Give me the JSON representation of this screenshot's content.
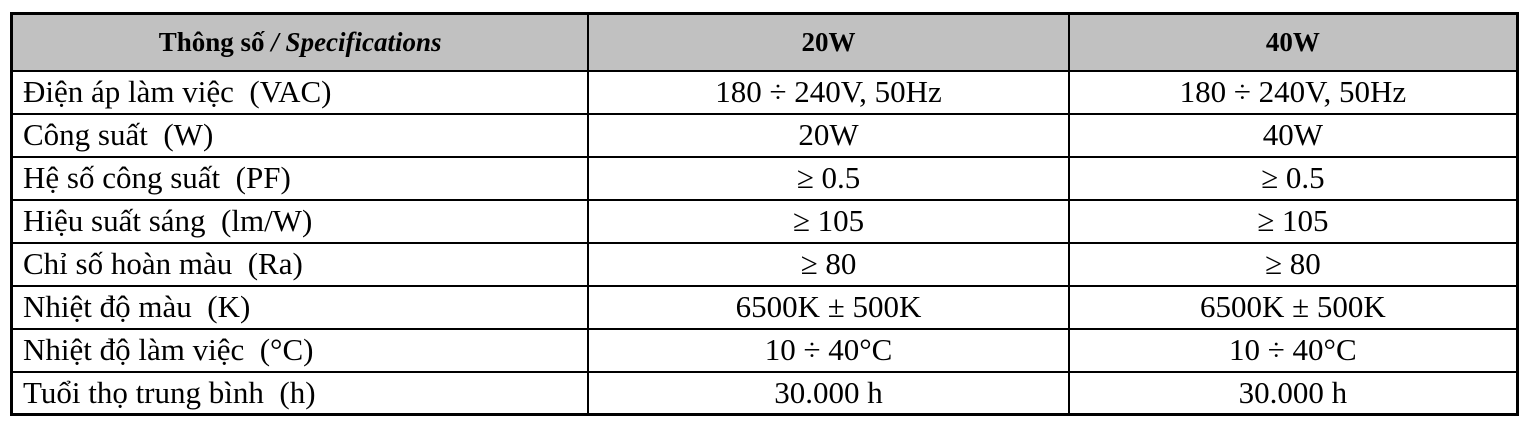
{
  "table": {
    "header": {
      "col1_prefix": "Thông số ",
      "col1_italic": "/ Specifications",
      "col2": "20W",
      "col3": "40W"
    },
    "rows": [
      {
        "label": "Điện áp làm việc  (VAC)",
        "v20": "180 ÷ 240V, 50Hz",
        "v40": "180 ÷ 240V, 50Hz"
      },
      {
        "label": "Công suất  (W)",
        "v20": "20W",
        "v40": "40W"
      },
      {
        "label": "Hệ số công suất  (PF)",
        "v20": "≥ 0.5",
        "v40": "≥ 0.5"
      },
      {
        "label": "Hiệu suất sáng  (lm/W)",
        "v20": "≥ 105",
        "v40": "≥ 105"
      },
      {
        "label": "Chỉ số hoàn màu  (Ra)",
        "v20": "≥ 80",
        "v40": "≥ 80"
      },
      {
        "label": "Nhiệt độ màu  (K)",
        "v20": "6500K ± 500K",
        "v40": "6500K ± 500K"
      },
      {
        "label": "Nhiệt độ làm việc  (°C)",
        "v20": "10 ÷ 40°C",
        "v40": "10 ÷ 40°C"
      },
      {
        "label": "Tuổi thọ trung bình  (h)",
        "v20": "30.000 h",
        "v40": "30.000 h"
      }
    ],
    "colors": {
      "header_bg": "#c1c1c1",
      "border": "#000000",
      "text": "#000000",
      "background": "#ffffff"
    }
  }
}
